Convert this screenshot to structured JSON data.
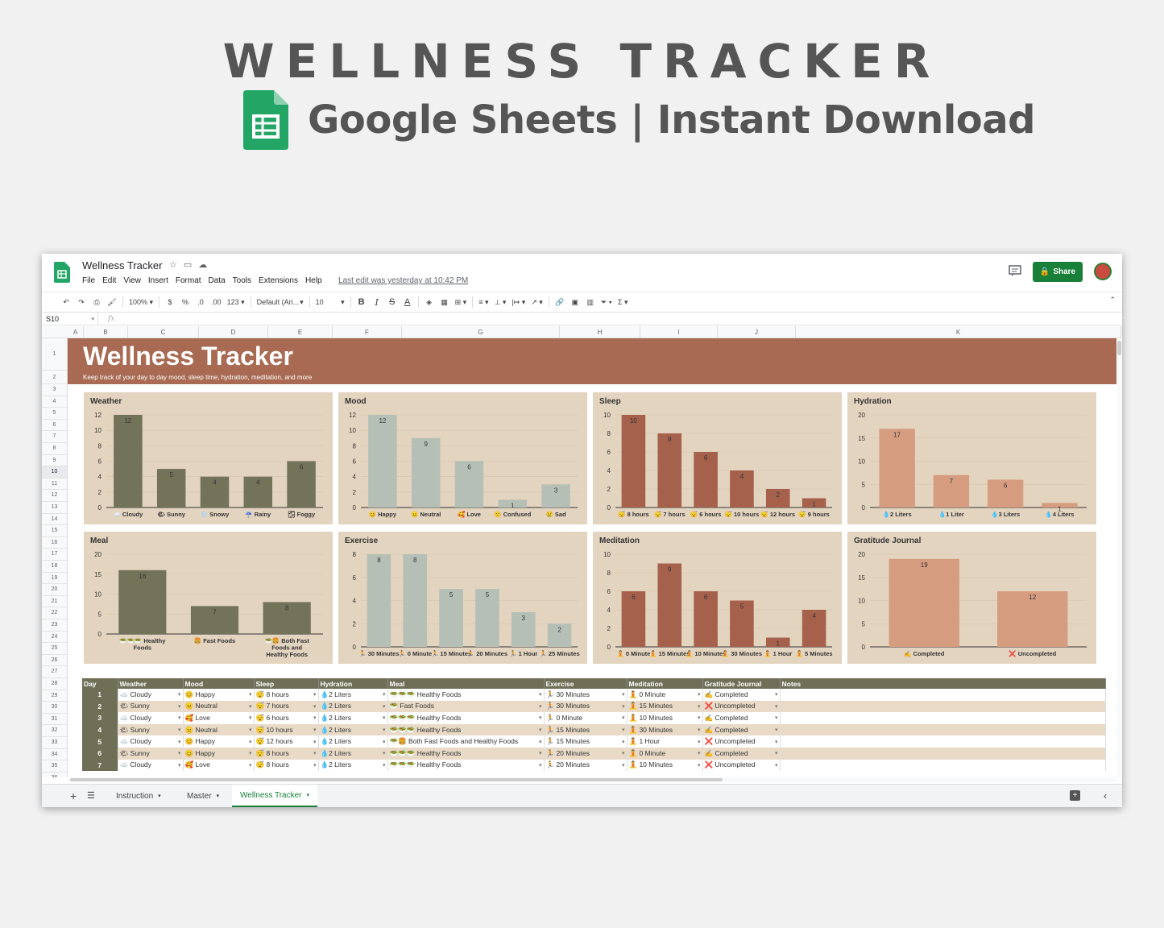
{
  "promo": {
    "title": "WELLNESS TRACKER",
    "subtitle": "Google Sheets | Instant Download"
  },
  "app": {
    "doc_title": "Wellness Tracker",
    "menu": [
      "File",
      "Edit",
      "View",
      "Insert",
      "Format",
      "Data",
      "Tools",
      "Extensions",
      "Help"
    ],
    "last_edit": "Last edit was yesterday at 10:42 PM",
    "share_label": "Share",
    "zoom": "100%",
    "currency": "$",
    "percent": "%",
    "dec_decrease": ".0",
    "dec_increase": ".00",
    "format_123": "123",
    "font_name": "Default (Ari...",
    "font_size": "10",
    "cell_ref": "S10",
    "fx": "fx",
    "accent": "#188038"
  },
  "columns": [
    "A",
    "B",
    "C",
    "D",
    "E",
    "F",
    "G",
    "H",
    "I",
    "J",
    "K"
  ],
  "rows": [
    "1",
    "2",
    "3",
    "4",
    "5",
    "6",
    "7",
    "8",
    "9",
    "10",
    "11",
    "12",
    "13",
    "14",
    "15",
    "16",
    "17",
    "18",
    "19",
    "20",
    "21",
    "22",
    "23",
    "24",
    "25",
    "26",
    "27",
    "28",
    "29",
    "30",
    "31",
    "32",
    "33",
    "34",
    "35",
    "36"
  ],
  "banner": {
    "title": "Wellness Tracker",
    "subtitle": "Keep track of your day to day mood, sleep time, hydration, meditation, and more",
    "color": "#a86a52"
  },
  "chart_data": [
    {
      "type": "bar",
      "title": "Weather",
      "categories": [
        "☁️ Cloudy",
        "🌤 Sunny",
        "❄️ Snowy",
        "☔ Rainy",
        "🌫 Foggy"
      ],
      "values": [
        12,
        5,
        4,
        4,
        6
      ],
      "ylim": [
        0,
        12
      ],
      "yticks": [
        0,
        2,
        4,
        6,
        8,
        10,
        12
      ],
      "color": "#737359"
    },
    {
      "type": "bar",
      "title": "Mood",
      "categories": [
        "😊 Happy",
        "😐 Neutral",
        "🥰 Love",
        "😕 Confused",
        "😢 Sad"
      ],
      "values": [
        12,
        9,
        6,
        1,
        3
      ],
      "ylim": [
        0,
        12
      ],
      "yticks": [
        0,
        2,
        4,
        6,
        8,
        10,
        12
      ],
      "color": "#b6bfb6"
    },
    {
      "type": "bar",
      "title": "Sleep",
      "categories": [
        "😴 8 hours",
        "😴 7 hours",
        "😴 6 hours",
        "😴 10 hours",
        "😴 12 hours",
        "😴 9 hours"
      ],
      "values": [
        10,
        8,
        6,
        4,
        2,
        1
      ],
      "ylim": [
        0,
        10
      ],
      "yticks": [
        0,
        2,
        4,
        6,
        8,
        10
      ],
      "color": "#a6614d"
    },
    {
      "type": "bar",
      "title": "Hydration",
      "categories": [
        "💧2 Liters",
        "💧1 Liter",
        "💧3 Liters",
        "💧4 Liters"
      ],
      "values": [
        17,
        7,
        6,
        1
      ],
      "ylim": [
        0,
        20
      ],
      "yticks": [
        0,
        5,
        10,
        15,
        20
      ],
      "color": "#d69c80"
    },
    {
      "type": "bar",
      "title": "Meal",
      "categories": [
        "🥗🥗🥗 Healthy Foods",
        "🍔 Fast Foods",
        "🥗🍔 Both Fast Foods and Healthy Foods"
      ],
      "values": [
        16,
        7,
        8
      ],
      "ylim": [
        0,
        20
      ],
      "yticks": [
        0,
        5,
        10,
        15,
        20
      ],
      "color": "#737359"
    },
    {
      "type": "bar",
      "title": "Exercise",
      "categories": [
        "🏃 30 Minutes",
        "🏃 0 Minute",
        "🏃 15 Minutes",
        "🏃 20 Minutes",
        "🏃 1 Hour",
        "🏃 25 Minutes"
      ],
      "values": [
        8,
        8,
        5,
        5,
        3,
        2
      ],
      "ylim": [
        0,
        8
      ],
      "yticks": [
        0,
        2,
        4,
        6,
        8
      ],
      "color": "#b6bfb6"
    },
    {
      "type": "bar",
      "title": "Meditation",
      "categories": [
        "🧘 0 Minute",
        "🧘 15 Minutes",
        "🧘 10 Minutes",
        "🧘 30 Minutes",
        "🧘 1 Hour",
        "🧘 5 Minutes"
      ],
      "values": [
        6,
        9,
        6,
        5,
        1,
        4
      ],
      "ylim": [
        0,
        10
      ],
      "yticks": [
        0,
        2,
        4,
        6,
        8,
        10
      ],
      "color": "#a6614d"
    },
    {
      "type": "bar",
      "title": "Gratitude Journal",
      "categories": [
        "✍️ Completed",
        "❌ Uncompleted"
      ],
      "values": [
        19,
        12
      ],
      "ylim": [
        0,
        20
      ],
      "yticks": [
        0,
        5,
        10,
        15,
        20
      ],
      "color": "#d69c80"
    }
  ],
  "table": {
    "headers": [
      "Day",
      "Weather",
      "Mood",
      "Sleep",
      "Hydration",
      "Meal",
      "Exercise",
      "Meditation",
      "Gratitude Journal",
      "Notes"
    ],
    "rows": [
      [
        "1",
        "☁️ Cloudy",
        "😊 Happy",
        "😴 8 hours",
        "💧2 Liters",
        "🥗🥗🥗 Healthy Foods",
        "🏃 30 Minutes",
        "🧘 0 Minute",
        "✍️ Completed",
        ""
      ],
      [
        "2",
        "🌤 Sunny",
        "😐 Neutral",
        "😴 7 hours",
        "💧2 Liters",
        "🥗 Fast Foods",
        "🏃 30 Minutes",
        "🧘 15 Minutes",
        "❌ Uncompleted",
        ""
      ],
      [
        "3",
        "☁️ Cloudy",
        "🥰 Love",
        "😴 6 hours",
        "💧2 Liters",
        "🥗🥗🥗 Healthy Foods",
        "🏃 0 Minute",
        "🧘 10 Minutes",
        "✍️ Completed",
        ""
      ],
      [
        "4",
        "🌤 Sunny",
        "😐 Neutral",
        "😴 10 hours",
        "💧2 Liters",
        "🥗🥗🥗 Healthy Foods",
        "🏃 15 Minutes",
        "🧘 30 Minutes",
        "✍️ Completed",
        ""
      ],
      [
        "5",
        "☁️ Cloudy",
        "😊 Happy",
        "😴 12 hours",
        "💧2 Liters",
        "🥗🍔 Both Fast Foods and Healthy Foods",
        "🏃 15 Minutes",
        "🧘 1 Hour",
        "❌ Uncompleted",
        ""
      ],
      [
        "6",
        "🌤 Sunny",
        "😊 Happy",
        "😴 8 hours",
        "💧2 Liters",
        "🥗🥗🥗 Healthy Foods",
        "🏃 20 Minutes",
        "🧘 0 Minute",
        "✍️ Completed",
        ""
      ],
      [
        "7",
        "☁️ Cloudy",
        "🥰 Love",
        "😴 8 hours",
        "💧2 Liters",
        "🥗🥗🥗 Healthy Foods",
        "🏃 20 Minutes",
        "🧘 10 Minutes",
        "❌ Uncompleted",
        ""
      ]
    ]
  },
  "tabs": [
    {
      "label": "Instruction",
      "active": false
    },
    {
      "label": "Master",
      "active": false
    },
    {
      "label": "Wellness Tracker",
      "active": true
    }
  ]
}
